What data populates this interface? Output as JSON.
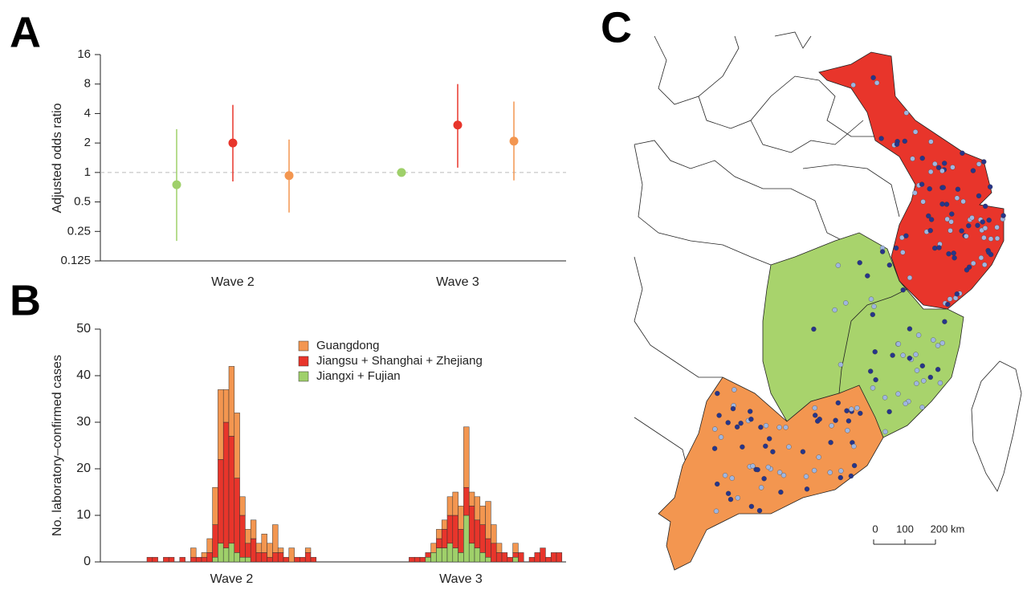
{
  "panel_labels": [
    "A",
    "B",
    "C"
  ],
  "chart_data": [
    {
      "type": "dot",
      "ylabel": "Adjusted odds ratio",
      "categories": [
        "Wave 2",
        "Wave 3"
      ],
      "log_scale": true,
      "ylim": [
        0.125,
        16
      ],
      "yticks": [
        0.125,
        0.25,
        0.5,
        1,
        2,
        4,
        8,
        16
      ],
      "reference_line": 1,
      "series": [
        {
          "color": "#9fd06a",
          "values": [
            0.75,
            1
          ],
          "lower": [
            0.2,
            null
          ],
          "upper": [
            2.77,
            null
          ]
        },
        {
          "color": "#e8352b",
          "values": [
            2,
            3.05
          ],
          "lower": [
            0.81,
            1.12
          ],
          "upper": [
            4.9,
            8
          ]
        },
        {
          "color": "#f39650",
          "values": [
            0.93,
            2.09
          ],
          "lower": [
            0.39,
            0.83
          ],
          "upper": [
            2.17,
            5.3
          ]
        }
      ]
    },
    {
      "type": "stacked_bar",
      "ylabel": "No. laboratory–confirmed cases",
      "ylim": [
        0,
        50
      ],
      "yticks": [
        0,
        10,
        20,
        30,
        40,
        50
      ],
      "categories": [
        null,
        null,
        null,
        null,
        null,
        null,
        null,
        null,
        null,
        null,
        null,
        null,
        null,
        null,
        null,
        "Wave 2",
        null,
        null,
        null,
        null,
        null,
        null,
        null,
        null,
        null,
        null,
        null,
        null,
        null,
        null,
        null,
        null,
        null,
        null,
        null,
        null,
        null,
        null,
        null,
        null,
        null,
        null,
        null,
        null,
        null,
        null,
        null,
        null,
        null,
        null,
        null,
        null,
        null,
        null,
        null,
        null,
        null,
        "Wave 3",
        null,
        null,
        null,
        null,
        null,
        null,
        null,
        null,
        null,
        null,
        null,
        null,
        null,
        null,
        null,
        null,
        null,
        null
      ],
      "series": [
        {
          "name": "Jiangxi + Fujian",
          "color": "#9fd06a",
          "values": [
            0,
            0,
            0,
            0,
            0,
            0,
            0,
            0,
            0,
            0,
            0,
            0,
            1,
            4,
            3,
            4,
            2,
            1,
            1,
            0,
            0,
            0,
            0,
            0,
            0,
            0,
            0,
            0,
            0,
            0,
            0,
            0,
            0,
            0,
            0,
            0,
            0,
            0,
            0,
            0,
            0,
            0,
            0,
            0,
            0,
            0,
            0,
            0,
            0,
            0,
            0,
            1,
            2,
            3,
            3,
            4,
            3,
            2,
            10,
            4,
            3,
            2,
            1,
            0,
            0,
            0,
            0,
            1,
            0,
            0,
            0,
            0,
            0,
            0,
            0,
            0
          ]
        },
        {
          "name": "Jiangsu + Shanghai + Zhejiang",
          "color": "#e8352b",
          "values": [
            1,
            1,
            0,
            1,
            1,
            0,
            1,
            0,
            1,
            1,
            1,
            2,
            7,
            18,
            27,
            23,
            16,
            9,
            3,
            5,
            2,
            2,
            1,
            2,
            2,
            1,
            0,
            1,
            1,
            2,
            1,
            0,
            0,
            0,
            0,
            0,
            0,
            0,
            0,
            0,
            0,
            0,
            0,
            0,
            0,
            0,
            0,
            0,
            1,
            1,
            1,
            1,
            0,
            2,
            4,
            6,
            7,
            5,
            6,
            8,
            6,
            6,
            4,
            4,
            2,
            2,
            1,
            1,
            2,
            0,
            1,
            2,
            3,
            1,
            2,
            2
          ]
        },
        {
          "name": "Guangdong",
          "color": "#f39650",
          "values": [
            0,
            0,
            0,
            0,
            0,
            0,
            0,
            0,
            2,
            0,
            1,
            3,
            8,
            15,
            7,
            15,
            14,
            4,
            3,
            4,
            2,
            4,
            3,
            6,
            1,
            0,
            3,
            0,
            0,
            1,
            0,
            0,
            0,
            0,
            0,
            0,
            0,
            0,
            0,
            0,
            0,
            0,
            0,
            0,
            0,
            0,
            0,
            0,
            0,
            0,
            0,
            0,
            2,
            2,
            2,
            4,
            5,
            5,
            13,
            3,
            5,
            4,
            8,
            4,
            2,
            0,
            0,
            2,
            0,
            0,
            0,
            0,
            0,
            0,
            0,
            0
          ]
        }
      ],
      "legend_order": [
        2,
        1,
        0
      ]
    }
  ],
  "map": {
    "scale_labels": [
      "0",
      "100",
      "200 km"
    ]
  }
}
